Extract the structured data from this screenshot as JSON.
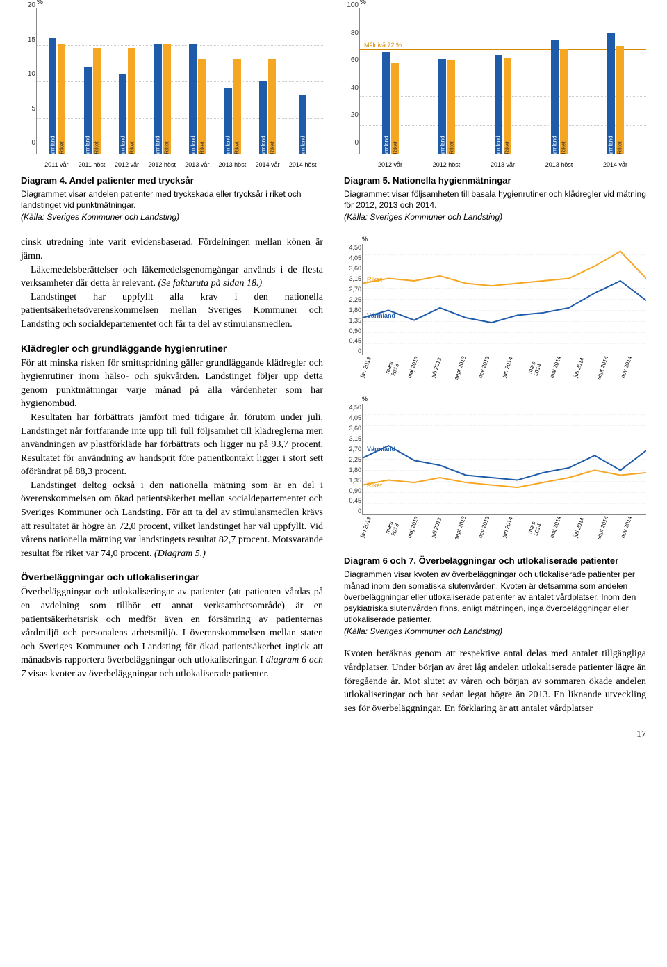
{
  "chart4": {
    "type": "bar",
    "percent_label": "%",
    "ylim": [
      0,
      20
    ],
    "yticks": [
      20,
      15,
      10,
      5,
      0
    ],
    "series_labels": [
      "Värmland",
      "Riket"
    ],
    "colors": {
      "varmland": "#1e5ba8",
      "riket": "#f5a623"
    },
    "categories": [
      "2011 vår",
      "2011 höst",
      "2012 vår",
      "2012 höst",
      "2013 vår",
      "2013 höst",
      "2014 vår",
      "2014 höst"
    ],
    "varmland": [
      16,
      12,
      11,
      15,
      15,
      9,
      10,
      8
    ],
    "riket": [
      15,
      14.5,
      14.5,
      15,
      13,
      13,
      13,
      0
    ],
    "title": "Diagram 4. Andel patienter med trycksår",
    "desc": "Diagrammet visar andelen patienter med tryckskada eller trycksår i riket och landstinget vid punktmätningar.",
    "source": "(Källa: Sveriges Kommuner och Landsting)"
  },
  "chart5": {
    "type": "bar",
    "percent_label": "%",
    "ylim": [
      0,
      100
    ],
    "yticks": [
      100,
      80,
      60,
      40,
      20,
      0
    ],
    "target": 72,
    "target_label": "Målnivå 72 %",
    "series_labels": [
      "Värmland",
      "Riket"
    ],
    "colors": {
      "varmland": "#1e5ba8",
      "riket": "#f5a623"
    },
    "categories": [
      "2012 vår",
      "2012 höst",
      "2013 vår",
      "2013 höst",
      "2014 vår"
    ],
    "varmland": [
      70,
      65,
      68,
      78,
      82.7
    ],
    "riket": [
      62,
      64,
      66,
      72,
      74
    ],
    "title": "Diagram 5. Nationella hygienmätningar",
    "desc": "Diagrammet visar följsamheten till basala hygienrutiner och klädregler vid mätning för 2012, 2013 och 2014.",
    "source": "(Källa: Sveriges Kommuner och Landsting)"
  },
  "body": {
    "p1": "cinsk utredning inte varit evidensbaserad. Fördelningen mellan könen är jämn.",
    "p2a": "Läkemedelsberättelser och läkemedelsgenomgångar används i de flesta verksamheter där detta är relevant. ",
    "p2b": "(Se faktaruta på sidan 18.)",
    "p3": "Landstinget har uppfyllt alla krav i den nationella patientsäkerhetsöverenskommelsen mellan Sveriges Kommuner och Landsting och socialdepartementet och får ta del av stimulansmedlen.",
    "h1": "Klädregler och grundläggande hygienrutiner",
    "p4": "För att minska risken för smittspridning gäller grundläggande klädregler och hygienrutiner inom hälso- och sjukvården. Landstinget följer upp detta genom punktmätningar varje månad på alla vårdenheter som har hygienombud.",
    "p5": "Resultaten har förbättrats jämfört med tidigare år, förutom under juli. Landstinget når fortfarande inte upp till full följsamhet till klädreglerna men användningen av plastförkläde har förbättrats och ligger nu på 93,7 procent. Resultatet för användning av handsprit före patientkontakt ligger i stort sett oförändrat på 88,3 procent.",
    "p6a": "Landstinget deltog också i den nationella mätning som är en del i överenskommelsen om ökad patientsäkerhet mellan socialdepartementet och Sveriges Kommuner och Landsting. För att ta del av stimulansmedlen krävs att resultatet är högre än 72,0 procent, vilket landstinget har väl uppfyllt. Vid vårens nationella mätning var landstingets resultat 82,7 procent. Motsvarande resultat för riket var 74,0 procent. ",
    "p6b": "(Diagram 5.)",
    "h2": "Överbeläggningar och utlokaliseringar",
    "p7a": "Överbeläggningar och utlokaliseringar av patienter (att patienten vårdas på en avdelning som tillhör ett annat verksamhetsområde) är en patientsäkerhetsrisk och medför även en försämring av patienternas vårdmiljö och personalens arbetsmiljö. I överenskommelsen mellan staten och Sveriges Kommuner och Landsting för ökad patientsäkerhet ingick att månadsvis rapportera överbeläggningar och utlokaliseringar. I ",
    "p7b": "diagram 6 och 7",
    "p7c": " visas kvoter av överbeläggningar och utlokaliserade patienter."
  },
  "chart6": {
    "type": "line",
    "percent_label": "%",
    "ylim": [
      0,
      4.5
    ],
    "yticks": [
      "4,50",
      "4,05",
      "3,60",
      "3,15",
      "2,70",
      "2,25",
      "1,80",
      "1,35",
      "0,90",
      "0,45",
      "0"
    ],
    "categories": [
      "jan 2013",
      "mars 2013",
      "maj 2013",
      "juli 2013",
      "sept 2013",
      "nov 2013",
      "jan 2014",
      "mars 2014",
      "maj 2014",
      "juli 2014",
      "sept 2014",
      "nov 2014"
    ],
    "series": {
      "Riket": {
        "color": "#f5a623",
        "values": [
          2.9,
          3.1,
          3.0,
          3.2,
          2.9,
          2.8,
          2.9,
          3.0,
          3.1,
          3.6,
          4.2,
          3.1
        ]
      },
      "Värmland": {
        "color": "#1e5ba8",
        "values": [
          1.5,
          1.8,
          1.4,
          1.9,
          1.5,
          1.3,
          1.6,
          1.7,
          1.9,
          2.5,
          3.0,
          2.2
        ]
      }
    },
    "series_label_riket": "Riket",
    "series_label_varmland": "Värmland"
  },
  "chart7": {
    "type": "line",
    "percent_label": "%",
    "ylim": [
      0,
      4.5
    ],
    "yticks": [
      "4,50",
      "4,05",
      "3,60",
      "3,15",
      "2,70",
      "2,25",
      "1,80",
      "1,35",
      "0,90",
      "0,45",
      "0"
    ],
    "categories": [
      "jan 2013",
      "mars 2013",
      "maj 2013",
      "juli 2013",
      "sept 2013",
      "nov 2013",
      "jan 2014",
      "mars 2014",
      "maj 2014",
      "juli 2014",
      "sept 2014",
      "nov 2014"
    ],
    "series": {
      "Värmland": {
        "color": "#1e5ba8",
        "values": [
          2.3,
          2.8,
          2.2,
          2.0,
          1.6,
          1.5,
          1.4,
          1.7,
          1.9,
          2.4,
          1.8,
          2.6
        ]
      },
      "Riket": {
        "color": "#f5a623",
        "values": [
          1.2,
          1.4,
          1.3,
          1.5,
          1.3,
          1.2,
          1.1,
          1.3,
          1.5,
          1.8,
          1.6,
          1.7
        ]
      }
    },
    "series_label_riket": "Riket",
    "series_label_varmland": "Värmland"
  },
  "chart67caption": {
    "title": "Diagram 6 och 7. Överbeläggningar och utlokaliserade patienter",
    "desc": "Diagrammen visar kvoten av överbeläggningar och utlokaliserade patienter per månad inom den somatiska slutenvården. Kvoten är detsamma som andelen överbeläggningar eller utlokaliserade patienter av antalet vårdplatser. Inom den psykiatriska slutenvården finns, enligt mätningen, inga överbeläggningar eller utlokaliserade patienter.",
    "source": "(Källa: Sveriges Kommuner och Landsting)"
  },
  "right_body": {
    "p1": "Kvoten beräknas genom att respektive antal delas med antalet tillgängliga vårdplatser. Under början av året låg andelen utlokaliserade patienter lägre än föregående år. Mot slutet av våren och början av sommaren ökade andelen utlokaliseringar och har sedan legat högre än 2013. En liknande utveckling ses för överbeläggningar. En förklaring är att antalet vårdplatser"
  },
  "page": "17"
}
